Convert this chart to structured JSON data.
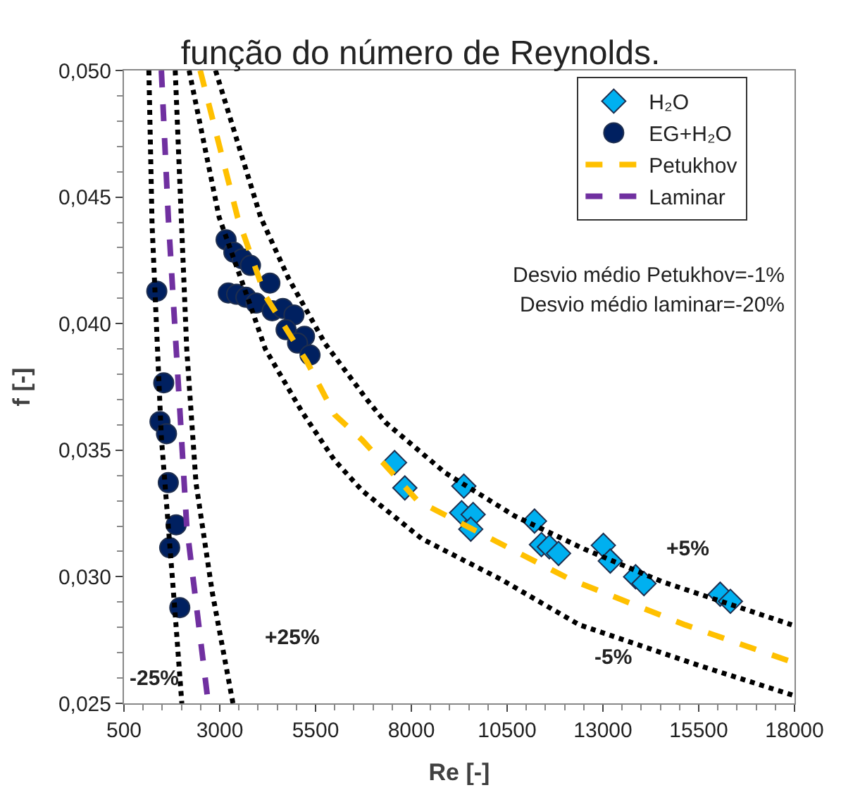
{
  "chart_data": {
    "type": "scatter",
    "title": "função do número de Reynolds.",
    "xlabel": "Re [-]",
    "ylabel": "f [-]",
    "xlim": [
      500,
      18000
    ],
    "xticks": [
      500,
      3000,
      5500,
      8000,
      10500,
      13000,
      15500,
      18000
    ],
    "ylim": [
      0.025,
      0.05
    ],
    "yticks": [
      {
        "value": 0.025,
        "label": "0,025"
      },
      {
        "value": 0.03,
        "label": "0,030"
      },
      {
        "value": 0.035,
        "label": "0,035"
      },
      {
        "value": 0.04,
        "label": "0,040"
      },
      {
        "value": 0.045,
        "label": "0,045"
      },
      {
        "value": 0.05,
        "label": "0,050"
      }
    ],
    "legend": "top right",
    "series": [
      {
        "name": "H₂O",
        "marker": "diamond",
        "color": "#00b0f0",
        "x": [
          7562,
          7830,
          9370,
          9312,
          9612,
          9551,
          11215,
          11395,
          11601,
          11842,
          13011,
          13192,
          13853,
          14071,
          16060,
          16327
        ],
        "values": [
          0.03451,
          0.03351,
          0.03358,
          0.03253,
          0.03246,
          0.03188,
          0.0322,
          0.03127,
          0.03118,
          0.03092,
          0.03124,
          0.03062,
          0.03,
          0.02973,
          0.02931,
          0.02903
        ]
      },
      {
        "name": "EG+H₂O",
        "marker": "circle",
        "color": "#002060",
        "x": [
          1357,
          1538,
          1440,
          1610,
          1657,
          1863,
          1693,
          1957,
          3165,
          3368,
          3585,
          3802,
          4308,
          3223,
          3440,
          3682,
          3946,
          4369,
          4647,
          4936,
          4731,
          5212,
          5031,
          5356
        ],
        "values": [
          0.04128,
          0.03766,
          0.03613,
          0.03565,
          0.03372,
          0.03205,
          0.03115,
          0.02878,
          0.04331,
          0.04282,
          0.04256,
          0.0423,
          0.0416,
          0.04121,
          0.04116,
          0.04104,
          0.04081,
          0.04051,
          0.0406,
          0.04034,
          0.03976,
          0.0395,
          0.03923,
          0.03876
        ]
      },
      {
        "name": "Petukhov",
        "type": "line",
        "line_style": "dashed",
        "color": "#ffc000",
        "x": [
          2490,
          3465,
          4188,
          5273,
          6000,
          6719,
          8166,
          10082,
          12143,
          15145,
          18000
        ],
        "values": [
          0.05,
          0.0442,
          0.0411,
          0.0385,
          0.0364,
          0.0354,
          0.033,
          0.0315,
          0.0299,
          0.0281,
          0.0266
        ]
      },
      {
        "name": "Laminar",
        "type": "line",
        "line_style": "dashed",
        "color": "#7030a0",
        "x": [
          1476,
          1657,
          1899,
          2138,
          2700
        ],
        "values": [
          0.05,
          0.0442,
          0.0381,
          0.032,
          0.025
        ]
      },
      {
        "type": "line",
        "line_style": "dotted",
        "color": "#000000",
        "x": [
          2890,
          4068,
          4791,
          5754,
          6840,
          7323,
          8890,
          10698,
          12505,
          14555,
          17929
        ],
        "values": [
          0.05,
          0.0442,
          0.0418,
          0.0392,
          0.037,
          0.0361,
          0.0341,
          0.0324,
          0.0311,
          0.0298,
          0.0281
        ]
      },
      {
        "type": "line",
        "line_style": "dotted",
        "color": "#000000",
        "x": [
          2200,
          2984,
          3827,
          4188,
          5153,
          5996,
          6719,
          8275,
          10336,
          12385,
          15500,
          18000
        ],
        "values": [
          0.05,
          0.0442,
          0.0406,
          0.039,
          0.0365,
          0.0346,
          0.0334,
          0.0315,
          0.0299,
          0.0281,
          0.0265,
          0.0253
        ]
      },
      {
        "type": "line",
        "line_style": "dotted",
        "color": "#000000",
        "x": [
          1838,
          1995,
          2138,
          2380,
          2803,
          3345
        ],
        "values": [
          0.05,
          0.0442,
          0.039,
          0.0337,
          0.0294,
          0.025
        ]
      },
      {
        "type": "line",
        "line_style": "dotted",
        "color": "#000000",
        "x": [
          1150,
          1234,
          1476,
          1838,
          2010
        ],
        "values": [
          0.05,
          0.0439,
          0.0355,
          0.0285,
          0.025
        ]
      }
    ],
    "annotations": [
      {
        "text": "Desvio médio Petukhov=-1%"
      },
      {
        "text": "Desvio médio laminar=-20%"
      },
      "+25%",
      "-25%",
      "+5%",
      "-5%"
    ]
  }
}
